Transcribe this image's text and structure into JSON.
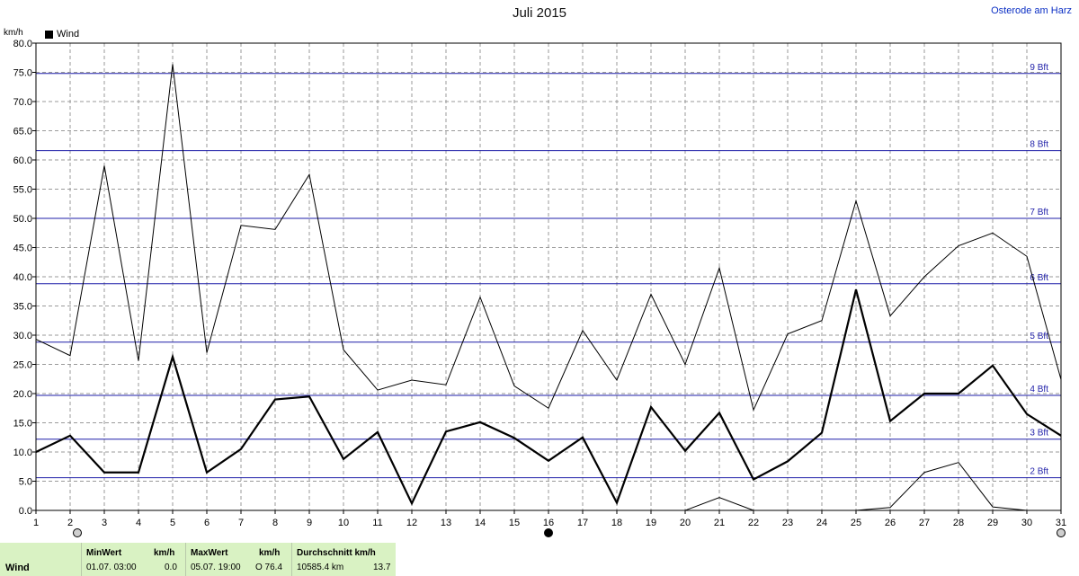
{
  "title": "Juli 2015",
  "location": "Osterode am Harz",
  "unit_label": "km/h",
  "legend": [
    {
      "name": "Wind",
      "color": "#000000"
    }
  ],
  "chart_data": {
    "type": "line",
    "title": "Juli 2015",
    "ylabel": "km/h",
    "ylim": [
      0,
      80
    ],
    "xlim": [
      1,
      31
    ],
    "grid": true,
    "x": [
      1,
      2,
      3,
      4,
      5,
      6,
      7,
      8,
      9,
      10,
      11,
      12,
      13,
      14,
      15,
      16,
      17,
      18,
      19,
      20,
      21,
      22,
      23,
      24,
      25,
      26,
      27,
      28,
      29,
      30,
      31
    ],
    "x_ticks": [
      1,
      2,
      3,
      4,
      5,
      6,
      7,
      8,
      9,
      10,
      11,
      12,
      13,
      14,
      15,
      16,
      17,
      18,
      19,
      20,
      21,
      22,
      23,
      24,
      25,
      26,
      27,
      28,
      29,
      30,
      31
    ],
    "y_ticks": [
      0,
      5,
      10,
      15,
      20,
      25,
      30,
      35,
      40,
      45,
      50,
      55,
      60,
      65,
      70,
      75,
      80
    ],
    "y_tick_labels": [
      "0.0",
      "5.0",
      "10.0",
      "15.0",
      "20.0",
      "25.0",
      "30.0",
      "35.0",
      "40.0",
      "45.0",
      "50.0",
      "55.0",
      "60.0",
      "65.0",
      "70.0",
      "75.0",
      "80.0"
    ],
    "series": [
      {
        "name": "Wind",
        "role": "average",
        "color": "#000000",
        "values": [
          10.0,
          12.8,
          6.5,
          6.5,
          26.3,
          6.5,
          10.5,
          19.0,
          19.5,
          8.8,
          13.4,
          1.2,
          13.5,
          15.1,
          12.4,
          8.5,
          12.5,
          1.3,
          17.7,
          10.2,
          16.7,
          5.3,
          8.4,
          13.3,
          37.8,
          15.3,
          20.0,
          20.0,
          24.8,
          16.5,
          12.8
        ]
      },
      {
        "role": "maximum",
        "color": "#000000",
        "values": [
          29.3,
          26.5,
          59.0,
          25.6,
          76.4,
          27.0,
          48.8,
          48.1,
          57.5,
          27.5,
          20.6,
          22.3,
          21.5,
          36.5,
          21.3,
          17.5,
          30.8,
          22.3,
          37.0,
          25.0,
          41.5,
          17.2,
          30.2,
          32.5,
          53.0,
          33.3,
          40.0,
          45.3,
          47.5,
          43.5,
          22.4
        ]
      },
      {
        "role": "minimum",
        "color": "#000000",
        "values": [
          0.0,
          0.0,
          0.0,
          0.0,
          0.0,
          0.0,
          0.0,
          0.0,
          0.0,
          0.0,
          0.0,
          0.0,
          0.0,
          0.0,
          0.0,
          0.0,
          0.0,
          0.0,
          0.0,
          0.0,
          2.2,
          0.0,
          0.0,
          0.0,
          0.0,
          0.5,
          6.5,
          8.2,
          0.6,
          0.0,
          0.0
        ]
      }
    ],
    "reference_lines": [
      {
        "label": "2 Bft",
        "value": 5.6
      },
      {
        "label": "3 Bft",
        "value": 12.2
      },
      {
        "label": "4 Bft",
        "value": 19.7
      },
      {
        "label": "5 Bft",
        "value": 28.8
      },
      {
        "label": "6 Bft",
        "value": 38.8
      },
      {
        "label": "7 Bft",
        "value": 50.0
      },
      {
        "label": "8 Bft",
        "value": 61.6
      },
      {
        "label": "9 Bft",
        "value": 74.8
      }
    ],
    "reference_color": "#1f1fa8",
    "moon_phase_days": [
      2,
      16,
      31
    ]
  },
  "summary": {
    "row_label": "Wind",
    "min_header": "MinWert",
    "min_unit": "km/h",
    "min_time": "01.07.  03:00",
    "min_value": "0.0",
    "max_header": "MaxWert",
    "max_unit": "km/h",
    "max_time": "05.07.  19:00",
    "max_value": "O 76.4",
    "avg_header": "Durchschnitt km/h",
    "avg_distance": "10585.4 km",
    "avg_value": "13.7"
  }
}
